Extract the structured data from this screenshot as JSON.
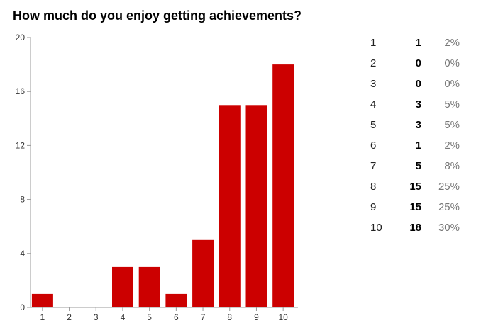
{
  "chart_data": {
    "type": "bar",
    "title": "How much do you enjoy getting achievements?",
    "categories": [
      "1",
      "2",
      "3",
      "4",
      "5",
      "6",
      "7",
      "8",
      "9",
      "10"
    ],
    "values": [
      1,
      0,
      0,
      3,
      3,
      1,
      5,
      15,
      15,
      18
    ],
    "ylim": [
      0,
      20
    ],
    "yticks": [
      "0",
      "4",
      "8",
      "12",
      "16",
      "20"
    ],
    "bar_color": "#cc0000",
    "grid": false,
    "legend": "none"
  },
  "summary": [
    {
      "label": "1",
      "count": "1",
      "pct": "2%"
    },
    {
      "label": "2",
      "count": "0",
      "pct": "0%"
    },
    {
      "label": "3",
      "count": "0",
      "pct": "0%"
    },
    {
      "label": "4",
      "count": "3",
      "pct": "5%"
    },
    {
      "label": "5",
      "count": "3",
      "pct": "5%"
    },
    {
      "label": "6",
      "count": "1",
      "pct": "2%"
    },
    {
      "label": "7",
      "count": "5",
      "pct": "8%"
    },
    {
      "label": "8",
      "count": "15",
      "pct": "25%"
    },
    {
      "label": "9",
      "count": "15",
      "pct": "25%"
    },
    {
      "label": "10",
      "count": "18",
      "pct": "30%"
    }
  ]
}
